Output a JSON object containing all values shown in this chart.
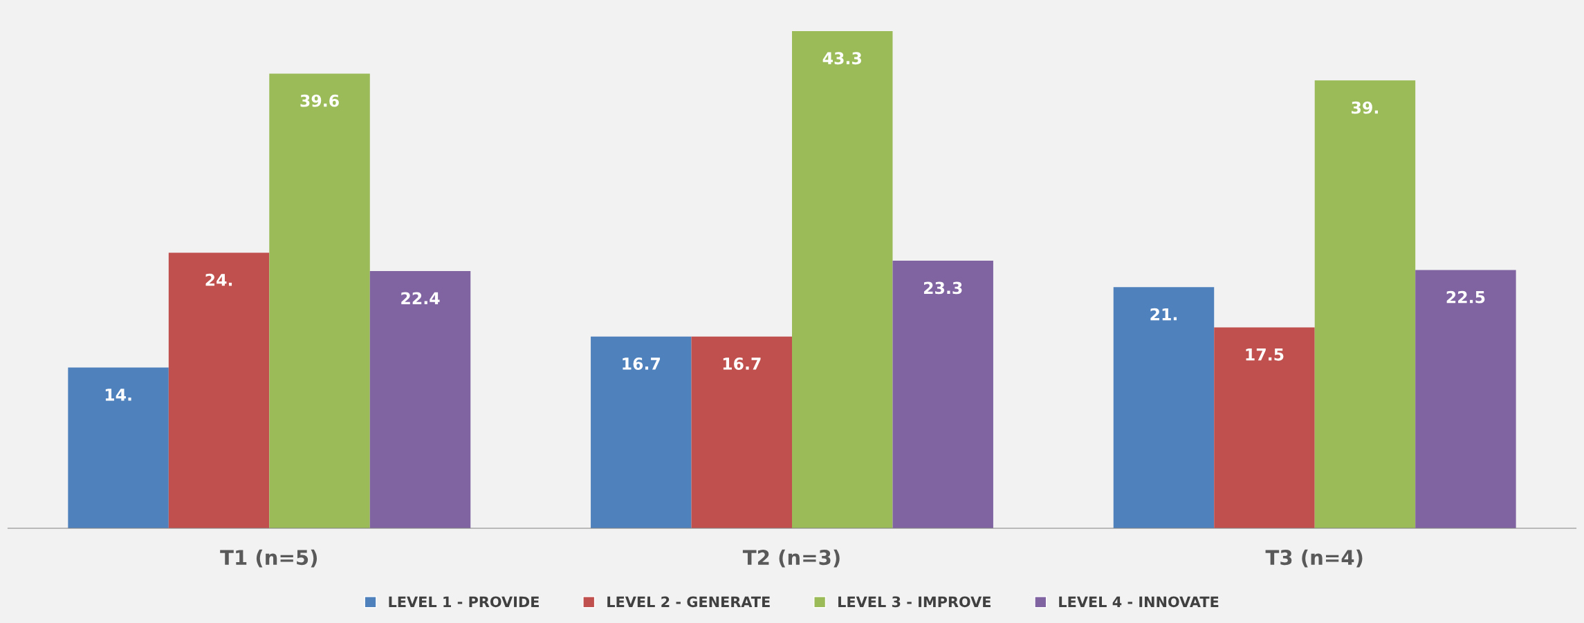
{
  "chart_data": {
    "type": "bar",
    "categories": [
      "T1 (n=5)",
      "T2 (n=3)",
      "T3 (n=4)"
    ],
    "series": [
      {
        "name": "LEVEL 1 - PROVIDE",
        "color": "#4f81bd",
        "values": [
          14,
          16.7,
          21
        ],
        "value_labels": [
          "14.",
          "16.7",
          "21."
        ]
      },
      {
        "name": "LEVEL 2 - GENERATE",
        "color": "#c0504d",
        "values": [
          24,
          16.7,
          17.5
        ],
        "value_labels": [
          "24.",
          "16.7",
          "17.5"
        ]
      },
      {
        "name": "LEVEL 3 - IMPROVE",
        "color": "#9bbb59",
        "values": [
          39.6,
          43.3,
          39
        ],
        "value_labels": [
          "39.6",
          "43.3",
          "39."
        ]
      },
      {
        "name": "LEVEL 4 - INNOVATE",
        "color": "#8064a2",
        "values": [
          22.4,
          23.3,
          22.5
        ],
        "value_labels": [
          "22.4",
          "23.3",
          "22.5"
        ]
      }
    ],
    "tick_labels": "x",
    "grid": false,
    "legend": "bottom"
  }
}
